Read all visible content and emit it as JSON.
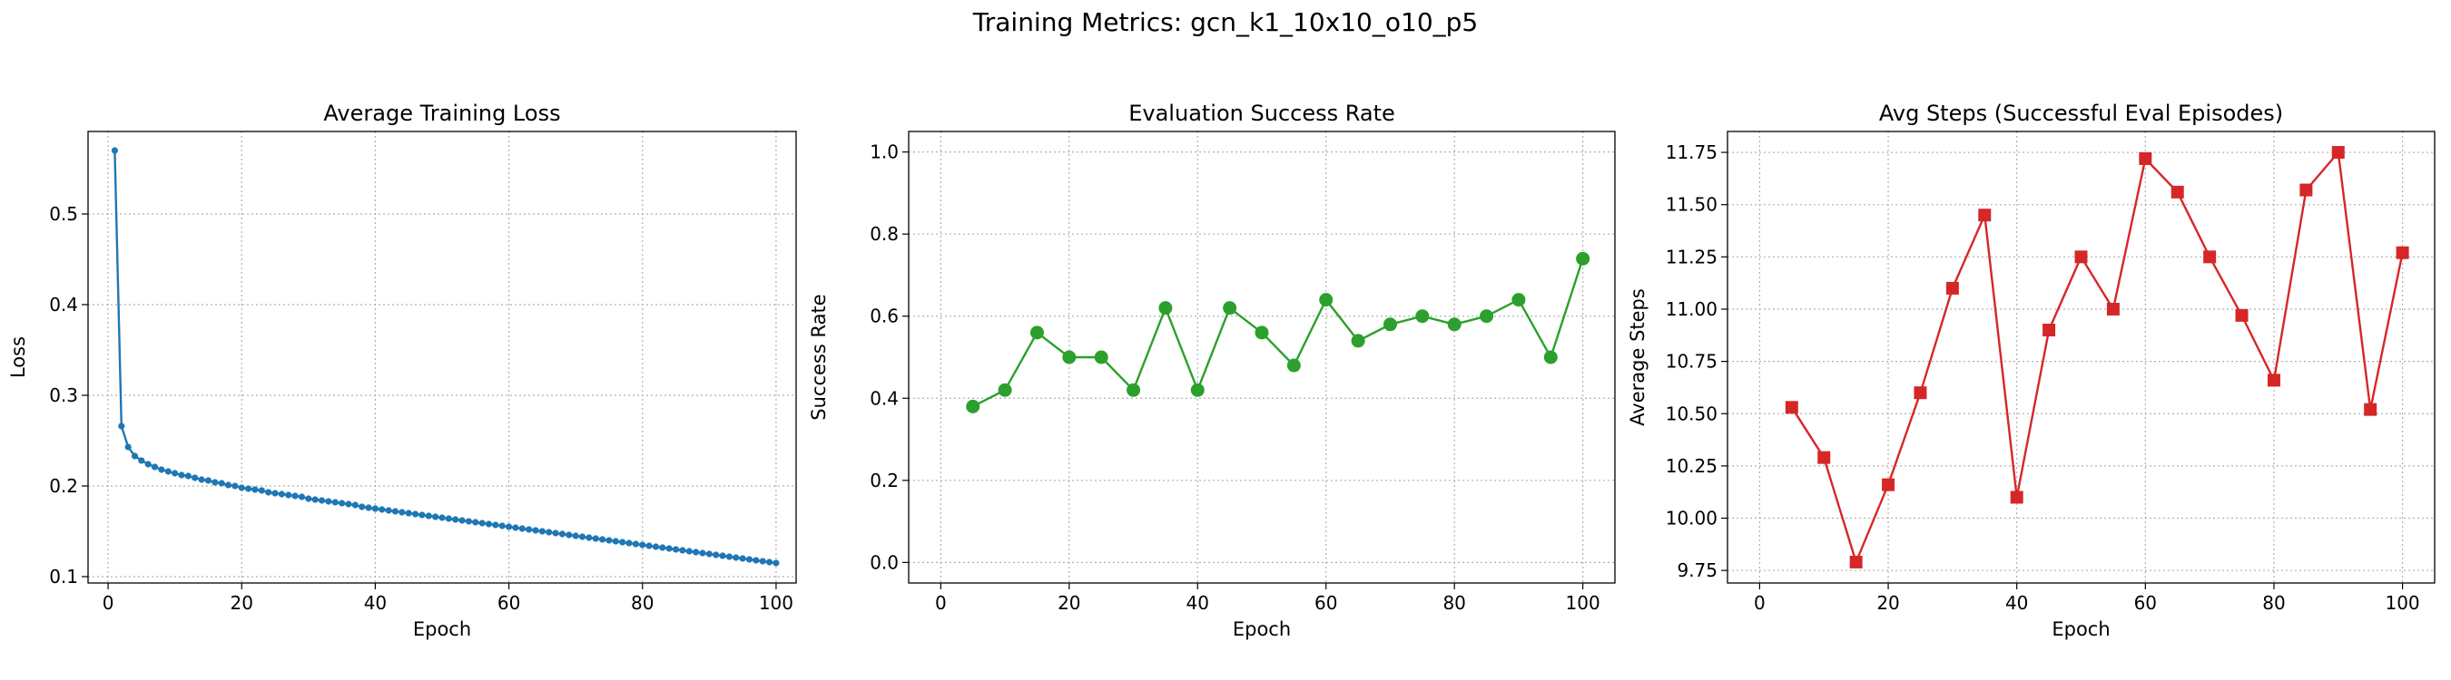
{
  "figure": {
    "suptitle": "Training Metrics: gcn_k1_10x10_o10_p5"
  },
  "chart_data": [
    {
      "type": "line",
      "title": "Average Training Loss",
      "xlabel": "Epoch",
      "ylabel": "Loss",
      "color": "#1f77b4",
      "marker": "circle-small",
      "xlim": [
        -3,
        103
      ],
      "ylim": [
        0.093,
        0.591
      ],
      "xticks": [
        0,
        20,
        40,
        60,
        80,
        100
      ],
      "yticks": [
        0.1,
        0.2,
        0.3,
        0.4,
        0.5
      ],
      "ytick_labels": [
        "0.1",
        "0.2",
        "0.3",
        "0.4",
        "0.5"
      ],
      "grid": true,
      "x": [
        1,
        2,
        3,
        4,
        5,
        6,
        7,
        8,
        9,
        10,
        11,
        12,
        13,
        14,
        15,
        16,
        17,
        18,
        19,
        20,
        21,
        22,
        23,
        24,
        25,
        26,
        27,
        28,
        29,
        30,
        31,
        32,
        33,
        34,
        35,
        36,
        37,
        38,
        39,
        40,
        41,
        42,
        43,
        44,
        45,
        46,
        47,
        48,
        49,
        50,
        51,
        52,
        53,
        54,
        55,
        56,
        57,
        58,
        59,
        60,
        61,
        62,
        63,
        64,
        65,
        66,
        67,
        68,
        69,
        70,
        71,
        72,
        73,
        74,
        75,
        76,
        77,
        78,
        79,
        80,
        81,
        82,
        83,
        84,
        85,
        86,
        87,
        88,
        89,
        90,
        91,
        92,
        93,
        94,
        95,
        96,
        97,
        98,
        99,
        100
      ],
      "y": [
        0.57,
        0.266,
        0.243,
        0.233,
        0.228,
        0.224,
        0.221,
        0.218,
        0.216,
        0.214,
        0.212,
        0.211,
        0.209,
        0.207,
        0.206,
        0.204,
        0.203,
        0.201,
        0.2,
        0.198,
        0.197,
        0.196,
        0.195,
        0.193,
        0.192,
        0.191,
        0.19,
        0.189,
        0.188,
        0.186,
        0.185,
        0.184,
        0.183,
        0.182,
        0.181,
        0.18,
        0.179,
        0.177,
        0.176,
        0.175,
        0.174,
        0.173,
        0.172,
        0.171,
        0.17,
        0.169,
        0.168,
        0.167,
        0.166,
        0.165,
        0.164,
        0.163,
        0.162,
        0.161,
        0.16,
        0.159,
        0.158,
        0.157,
        0.156,
        0.155,
        0.154,
        0.153,
        0.152,
        0.151,
        0.15,
        0.149,
        0.148,
        0.147,
        0.146,
        0.145,
        0.144,
        0.143,
        0.142,
        0.141,
        0.14,
        0.139,
        0.138,
        0.137,
        0.136,
        0.135,
        0.134,
        0.133,
        0.132,
        0.131,
        0.13,
        0.129,
        0.128,
        0.127,
        0.126,
        0.125,
        0.124,
        0.123,
        0.122,
        0.121,
        0.12,
        0.119,
        0.118,
        0.117,
        0.116,
        0.115
      ]
    },
    {
      "type": "line",
      "title": "Evaluation Success Rate",
      "xlabel": "Epoch",
      "ylabel": "Success Rate",
      "color": "#2ca02c",
      "marker": "circle",
      "xlim": [
        -5,
        105
      ],
      "ylim": [
        -0.05,
        1.05
      ],
      "xticks": [
        0,
        20,
        40,
        60,
        80,
        100
      ],
      "yticks": [
        0.0,
        0.2,
        0.4,
        0.6,
        0.8,
        1.0
      ],
      "ytick_labels": [
        "0.0",
        "0.2",
        "0.4",
        "0.6",
        "0.8",
        "1.0"
      ],
      "grid": true,
      "x": [
        5,
        10,
        15,
        20,
        25,
        30,
        35,
        40,
        45,
        50,
        55,
        60,
        65,
        70,
        75,
        80,
        85,
        90,
        95,
        100
      ],
      "y": [
        0.38,
        0.42,
        0.56,
        0.5,
        0.5,
        0.42,
        0.62,
        0.42,
        0.62,
        0.56,
        0.48,
        0.64,
        0.54,
        0.58,
        0.6,
        0.58,
        0.6,
        0.64,
        0.5,
        0.74
      ]
    },
    {
      "type": "line",
      "title": "Avg Steps (Successful Eval Episodes)",
      "xlabel": "Epoch",
      "ylabel": "Average Steps",
      "color": "#d62728",
      "marker": "square",
      "xlim": [
        -5,
        105
      ],
      "ylim": [
        9.69,
        11.85
      ],
      "xticks": [
        0,
        20,
        40,
        60,
        80,
        100
      ],
      "yticks": [
        9.75,
        10.0,
        10.25,
        10.5,
        10.75,
        11.0,
        11.25,
        11.5,
        11.75
      ],
      "ytick_labels": [
        "9.75",
        "10.00",
        "10.25",
        "10.50",
        "10.75",
        "11.00",
        "11.25",
        "11.50",
        "11.75"
      ],
      "grid": true,
      "x": [
        5,
        10,
        15,
        20,
        25,
        30,
        35,
        40,
        45,
        50,
        55,
        60,
        65,
        70,
        75,
        80,
        85,
        90,
        95,
        100
      ],
      "y": [
        10.53,
        10.29,
        9.79,
        10.16,
        10.6,
        11.1,
        11.45,
        10.1,
        10.9,
        11.25,
        11.0,
        11.72,
        11.56,
        11.25,
        10.97,
        10.66,
        11.57,
        11.75,
        10.52,
        11.27
      ]
    }
  ]
}
